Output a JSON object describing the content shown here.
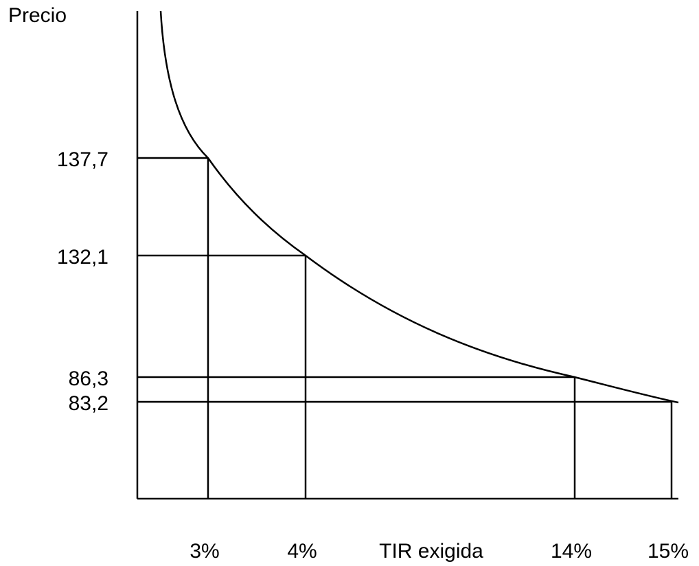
{
  "chart_data": {
    "type": "line",
    "ylabel": "Precio",
    "xlabel": "TIR exigida",
    "points": [
      {
        "x_label": "3%",
        "y_label": "137,7",
        "x": 3,
        "y": 137.7
      },
      {
        "x_label": "4%",
        "y_label": "132,1",
        "x": 4,
        "y": 132.1
      },
      {
        "x_label": "14%",
        "y_label": "86,3",
        "x": 14,
        "y": 86.3
      },
      {
        "x_label": "15%",
        "y_label": "83,2",
        "x": 15,
        "y": 83.2
      }
    ],
    "grid": false,
    "legend": "none"
  }
}
